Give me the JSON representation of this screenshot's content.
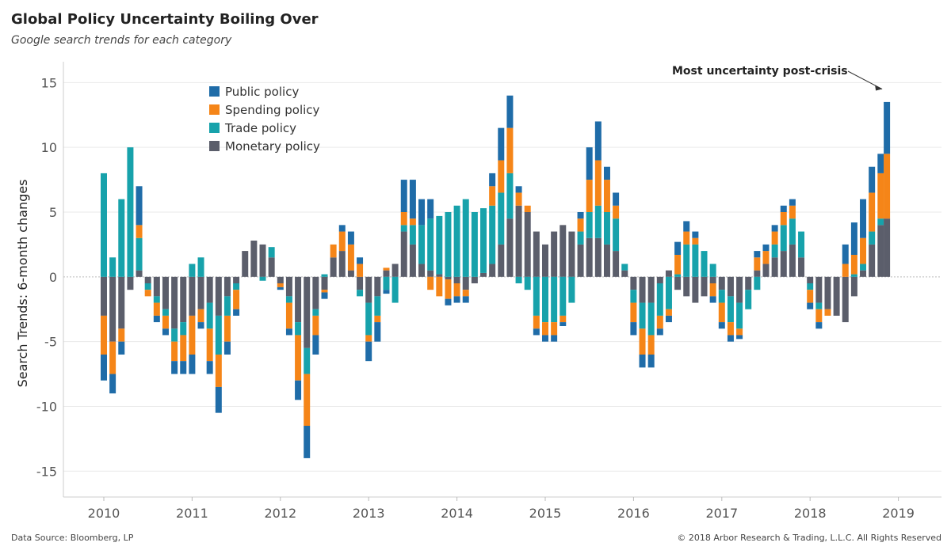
{
  "title": "Global Policy Uncertainty Boiling Over",
  "subtitle": "Google search trends for each category",
  "footer": {
    "source": "Data Source: Bloomberg, LP",
    "copyright": "© 2018 Arbor Research & Trading, L.L.C. All Rights Reserved"
  },
  "colors": {
    "public": "#1f6ca8",
    "spending": "#f58518",
    "trade": "#17a2ab",
    "monetary": "#5b5e6b",
    "grid": "#e9e9e9",
    "zero_line": "#bbbbbb"
  },
  "chart_data": {
    "type": "bar",
    "stacked": true,
    "title": "Global Policy Uncertainty Boiling Over",
    "subtitle": "Google search trends for each category",
    "xlabel": "",
    "ylabel": "Search Trends: 6-month changes",
    "xlim": [
      2010,
      2019
    ],
    "ylim": [
      -17,
      16
    ],
    "y_ticks": [
      15,
      10,
      5,
      0,
      -5,
      -10,
      -15
    ],
    "x_ticks": [
      "2010",
      "2011",
      "2012",
      "2013",
      "2014",
      "2015",
      "2016",
      "2017",
      "2018",
      "2019"
    ],
    "grid": true,
    "legend": "top-left",
    "annotation": {
      "text": "Most uncertainty post-crisis",
      "x": 2018.87,
      "y": 14.5
    },
    "x": [
      2010.0,
      2010.1,
      2010.2,
      2010.3,
      2010.4,
      2010.5,
      2010.6,
      2010.7,
      2010.8,
      2010.9,
      2011.0,
      2011.1,
      2011.2,
      2011.3,
      2011.4,
      2011.5,
      2011.6,
      2011.7,
      2011.8,
      2011.9,
      2012.0,
      2012.1,
      2012.2,
      2012.3,
      2012.4,
      2012.5,
      2012.6,
      2012.7,
      2012.8,
      2012.9,
      2013.0,
      2013.1,
      2013.2,
      2013.3,
      2013.4,
      2013.5,
      2013.6,
      2013.7,
      2013.8,
      2013.9,
      2014.0,
      2014.1,
      2014.2,
      2014.3,
      2014.4,
      2014.5,
      2014.6,
      2014.7,
      2014.8,
      2014.9,
      2015.0,
      2015.1,
      2015.2,
      2015.3,
      2015.4,
      2015.5,
      2015.6,
      2015.7,
      2015.8,
      2015.9,
      2016.0,
      2016.1,
      2016.2,
      2016.3,
      2016.4,
      2016.5,
      2016.6,
      2016.7,
      2016.8,
      2016.9,
      2017.0,
      2017.1,
      2017.2,
      2017.3,
      2017.4,
      2017.5,
      2017.6,
      2017.7,
      2017.8,
      2017.9,
      2018.0,
      2018.1,
      2018.2,
      2018.3,
      2018.4,
      2018.5,
      2018.6,
      2018.7,
      2018.8,
      2018.87
    ],
    "series": [
      {
        "name": "Monetary policy",
        "key": "monetary",
        "values": [
          -3.0,
          -5.0,
          -4.0,
          -1.0,
          0.5,
          -0.5,
          -1.5,
          -2.5,
          -4.0,
          -3.5,
          -3.0,
          -2.5,
          -2.0,
          -3.0,
          -1.5,
          -0.5,
          2.0,
          2.8,
          2.5,
          1.5,
          -0.5,
          -1.5,
          -3.5,
          -5.5,
          -2.5,
          -1.0,
          1.5,
          2.0,
          0.5,
          -1.0,
          -2.0,
          -1.5,
          0.5,
          1.0,
          3.5,
          2.5,
          1.0,
          0.5,
          0.2,
          -0.2,
          -0.5,
          -1.0,
          -0.5,
          0.3,
          1.0,
          2.5,
          4.5,
          5.5,
          5.0,
          3.5,
          2.5,
          3.5,
          4.0,
          3.5,
          2.5,
          3.0,
          3.0,
          2.5,
          2.0,
          0.5,
          -1.0,
          -2.0,
          -2.0,
          -0.5,
          0.5,
          -1.0,
          -1.5,
          -2.0,
          -1.5,
          -0.5,
          -1.0,
          -1.5,
          -2.0,
          -1.0,
          0.5,
          1.0,
          1.5,
          2.0,
          2.5,
          1.5,
          -0.5,
          -2.0,
          -2.5,
          -3.0,
          -3.5,
          -1.5,
          0.5,
          2.5,
          4.0,
          4.5
        ]
      },
      {
        "name": "Trade policy",
        "key": "trade",
        "values": [
          8.0,
          1.5,
          6.0,
          10.0,
          2.5,
          -0.5,
          -0.5,
          -0.5,
          -1.0,
          -1.0,
          1.0,
          1.5,
          -2.0,
          -3.0,
          -1.5,
          -0.5,
          0.0,
          0.0,
          -0.3,
          0.8,
          0.0,
          -0.5,
          -1.0,
          -2.0,
          -0.5,
          0.2,
          0.0,
          0.0,
          0.0,
          -0.5,
          -2.5,
          -1.5,
          -1.0,
          -2.0,
          0.5,
          1.5,
          3.0,
          4.0,
          4.5,
          5.0,
          5.5,
          6.0,
          5.0,
          5.0,
          4.5,
          4.0,
          3.5,
          -0.5,
          -1.0,
          -3.0,
          -3.5,
          -3.5,
          -3.0,
          -2.0,
          1.0,
          2.0,
          2.5,
          2.5,
          2.5,
          0.5,
          -1.0,
          -2.0,
          -2.5,
          -2.5,
          -2.5,
          0.2,
          2.5,
          2.5,
          2.0,
          1.0,
          -1.0,
          -2.0,
          -2.0,
          -1.5,
          -1.0,
          0.0,
          1.0,
          2.0,
          2.0,
          2.0,
          -0.5,
          -0.5,
          0.0,
          0.0,
          0.0,
          0.2,
          0.5,
          1.0,
          0.5,
          0.0
        ]
      },
      {
        "name": "Spending policy",
        "key": "spending",
        "values": [
          -3.0,
          -2.5,
          -1.0,
          0.0,
          1.0,
          -0.5,
          -1.0,
          -1.0,
          -1.5,
          -2.0,
          -3.0,
          -1.0,
          -2.5,
          -2.5,
          -2.0,
          -1.5,
          0.0,
          0.0,
          0.0,
          0.0,
          -0.3,
          -2.0,
          -3.5,
          -4.0,
          -1.5,
          -0.2,
          1.0,
          1.5,
          2.0,
          1.0,
          -0.5,
          -0.5,
          0.2,
          0.0,
          1.0,
          0.5,
          0.0,
          -1.0,
          -1.5,
          -1.5,
          -1.0,
          -0.5,
          0.0,
          0.0,
          1.5,
          2.5,
          3.5,
          1.0,
          0.5,
          -1.0,
          -1.0,
          -1.0,
          -0.5,
          0.0,
          1.0,
          2.5,
          3.5,
          2.5,
          1.0,
          0.0,
          -1.5,
          -2.0,
          -1.5,
          -1.0,
          -0.5,
          1.5,
          1.0,
          0.5,
          0.0,
          -1.0,
          -1.5,
          -1.0,
          -0.5,
          0.0,
          1.0,
          1.0,
          1.0,
          1.0,
          1.0,
          0.0,
          -1.0,
          -1.0,
          -0.5,
          0.0,
          1.0,
          1.5,
          2.0,
          3.0,
          3.5,
          5.0
        ]
      },
      {
        "name": "Public policy",
        "key": "public",
        "values": [
          -2.0,
          -1.5,
          -1.0,
          0.0,
          3.0,
          0.0,
          -0.5,
          -0.5,
          -1.0,
          -1.0,
          -1.5,
          -0.5,
          -1.0,
          -2.0,
          -1.0,
          -0.5,
          0.0,
          0.0,
          0.0,
          0.0,
          -0.2,
          -0.5,
          -1.5,
          -2.5,
          -1.5,
          -0.5,
          0.0,
          0.5,
          1.0,
          0.5,
          -1.5,
          -1.5,
          -0.3,
          0.0,
          2.5,
          3.0,
          2.0,
          1.5,
          0.0,
          -0.5,
          -0.5,
          -0.5,
          0.0,
          0.0,
          1.0,
          2.5,
          2.5,
          0.5,
          0.0,
          -0.5,
          -0.5,
          -0.5,
          -0.3,
          0.0,
          0.5,
          2.5,
          3.0,
          1.0,
          1.0,
          0.0,
          -1.0,
          -1.0,
          -1.0,
          -0.5,
          -0.5,
          1.0,
          0.8,
          0.5,
          0.0,
          -0.5,
          -0.5,
          -0.5,
          -0.3,
          0.0,
          0.5,
          0.5,
          0.5,
          0.5,
          0.5,
          0.0,
          -0.5,
          -0.5,
          0.0,
          0.0,
          1.5,
          2.5,
          3.0,
          2.0,
          1.5,
          4.0
        ]
      }
    ]
  }
}
